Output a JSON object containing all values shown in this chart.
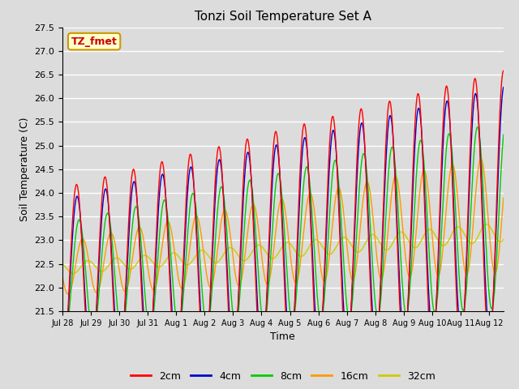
{
  "title": "Tonzi Soil Temperature Set A",
  "xlabel": "Time",
  "ylabel": "Soil Temperature (C)",
  "ylim": [
    21.5,
    27.5
  ],
  "fig_bg_color": "#dcdcdc",
  "plot_bg_color": "#dcdcdc",
  "colors": {
    "2cm": "#ff0000",
    "4cm": "#0000cc",
    "8cm": "#00cc00",
    "16cm": "#ff9900",
    "32cm": "#cccc00"
  },
  "annotation_text": "TZ_fmet",
  "annotation_bg": "#ffffcc",
  "annotation_border": "#cc9900",
  "x_tick_labels": [
    "Jul 28",
    "Jul 29",
    "Jul 30",
    "Jul 31",
    "Aug 1",
    "Aug 2",
    "Aug 3",
    "Aug 4",
    "Aug 5",
    "Aug 6",
    "Aug 7",
    "Aug 8",
    "Aug 9",
    "Aug 10",
    "Aug 11",
    "Aug 12"
  ],
  "n_days": 15.5,
  "n_points": 744
}
